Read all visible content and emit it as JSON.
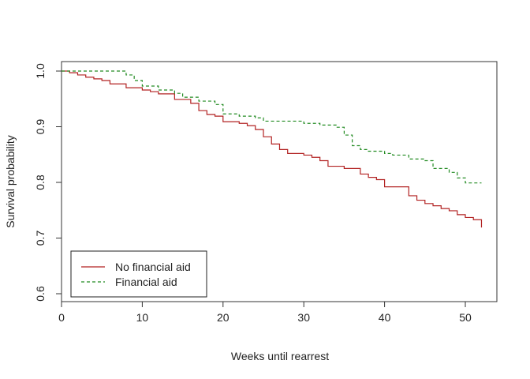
{
  "chart_data": {
    "type": "line",
    "title": "",
    "xlabel": "Weeks until rearrest",
    "ylabel": "Survival probability",
    "xlim": [
      0,
      54
    ],
    "ylim": [
      0.58,
      1.02
    ],
    "x_ticks": [
      "0",
      "10",
      "20",
      "30",
      "40",
      "50"
    ],
    "x_tick_values": [
      0,
      10,
      20,
      30,
      40,
      50
    ],
    "y_ticks": [
      "0.6",
      "0.7",
      "0.8",
      "0.9",
      "1.0"
    ],
    "y_tick_values": [
      0.6,
      0.7,
      0.8,
      0.9,
      1.0
    ],
    "grid": false,
    "legend_position": "bottom-left",
    "series": [
      {
        "name": "No financial aid",
        "color": "#b22222",
        "dash": "solid",
        "x": [
          0,
          1,
          2,
          3,
          4,
          5,
          6,
          8,
          10,
          11,
          12,
          14,
          16,
          17,
          18,
          19,
          20,
          22,
          23,
          24,
          25,
          26,
          27,
          28,
          30,
          31,
          32,
          33,
          35,
          37,
          38,
          39,
          40,
          43,
          44,
          45,
          46,
          47,
          48,
          49,
          50,
          51,
          52
        ],
        "y": [
          1.0,
          0.997,
          0.993,
          0.989,
          0.986,
          0.983,
          0.977,
          0.97,
          0.966,
          0.963,
          0.959,
          0.949,
          0.942,
          0.929,
          0.922,
          0.919,
          0.909,
          0.906,
          0.902,
          0.895,
          0.882,
          0.869,
          0.859,
          0.852,
          0.849,
          0.845,
          0.839,
          0.829,
          0.825,
          0.815,
          0.809,
          0.805,
          0.792,
          0.776,
          0.768,
          0.762,
          0.758,
          0.753,
          0.749,
          0.742,
          0.737,
          0.733,
          0.719
        ]
      },
      {
        "name": "Financial aid",
        "color": "#228b22",
        "dash": "dashed",
        "x": [
          0,
          8,
          9,
          10,
          12,
          14,
          15,
          17,
          19,
          20,
          22,
          24,
          25,
          27,
          30,
          32,
          34,
          35,
          36,
          37,
          38,
          40,
          41,
          43,
          45,
          46,
          48,
          49,
          50,
          52
        ],
        "y": [
          1.0,
          0.993,
          0.983,
          0.973,
          0.966,
          0.96,
          0.953,
          0.946,
          0.94,
          0.923,
          0.919,
          0.916,
          0.91,
          0.91,
          0.906,
          0.903,
          0.899,
          0.885,
          0.866,
          0.859,
          0.856,
          0.852,
          0.849,
          0.842,
          0.839,
          0.825,
          0.818,
          0.808,
          0.799,
          0.799
        ]
      }
    ]
  }
}
